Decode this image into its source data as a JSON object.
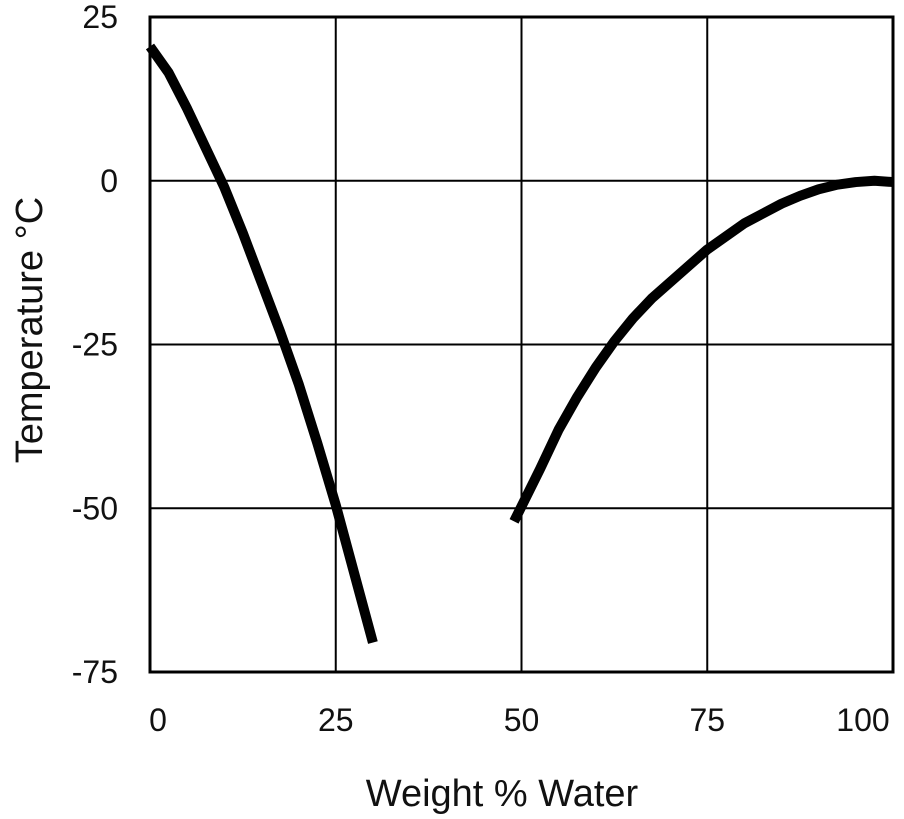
{
  "chart_data": {
    "type": "line",
    "title": "",
    "xlabel": "Weight % Water",
    "ylabel": "Temperature °C",
    "xlim": [
      0,
      100
    ],
    "ylim": [
      -75,
      25
    ],
    "x_ticks": [
      0,
      25,
      50,
      75,
      100
    ],
    "y_ticks": [
      25,
      0,
      -25,
      -50,
      -75
    ],
    "x_tick_labels": [
      "0",
      "25",
      "50",
      "75",
      "100"
    ],
    "y_tick_labels": [
      "25",
      "0",
      "-25",
      "-50",
      "-75"
    ],
    "grid": true,
    "legend": "none",
    "line_color": "#000000",
    "series": [
      {
        "x": [
          0,
          2.5,
          5,
          7.5,
          10,
          12.5,
          15,
          17.5,
          20,
          22.5,
          25,
          27.5,
          30
        ],
        "y": [
          20.5,
          16.5,
          11,
          5,
          -1,
          -8,
          -15.5,
          -23,
          -31,
          -40,
          -49.5,
          -60,
          -70.5
        ]
      },
      {
        "x": [
          49,
          52.5,
          55,
          57.5,
          60,
          62.5,
          65,
          67.5,
          70,
          72.5,
          75,
          77.5,
          80,
          82.5,
          85,
          87.5,
          90,
          92.5,
          95,
          97.5,
          100
        ],
        "y": [
          -52,
          -44,
          -38,
          -33,
          -28.5,
          -24.5,
          -21,
          -18,
          -15.5,
          -13,
          -10.5,
          -8.5,
          -6.5,
          -5,
          -3.5,
          -2.3,
          -1.3,
          -0.6,
          -0.2,
          0,
          -0.2
        ]
      }
    ]
  }
}
